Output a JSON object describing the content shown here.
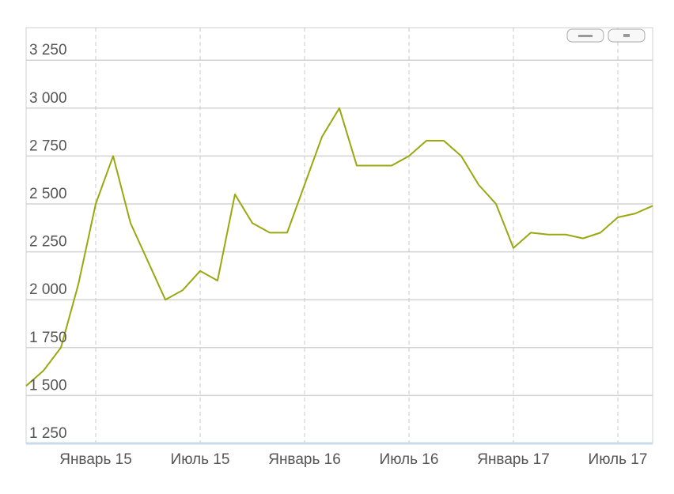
{
  "chart_data": {
    "type": "line",
    "x": [
      "2014-09",
      "2014-10",
      "2014-11",
      "2014-12",
      "2015-01",
      "2015-02",
      "2015-03",
      "2015-04",
      "2015-05",
      "2015-06",
      "2015-07",
      "2015-08",
      "2015-09",
      "2015-10",
      "2015-11",
      "2015-12",
      "2016-01",
      "2016-02",
      "2016-03",
      "2016-04",
      "2016-05",
      "2016-06",
      "2016-07",
      "2016-08",
      "2016-09",
      "2016-10",
      "2016-11",
      "2016-12",
      "2017-01",
      "2017-02",
      "2017-03",
      "2017-04",
      "2017-05",
      "2017-06",
      "2017-07",
      "2017-08",
      "2017-09"
    ],
    "series": [
      {
        "color": "#9aa80f",
        "values": [
          1550,
          1630,
          1750,
          2080,
          2500,
          2750,
          2400,
          2200,
          2000,
          2050,
          2150,
          2100,
          2550,
          2400,
          2350,
          2350,
          2600,
          2850,
          3000,
          2700,
          2700,
          2700,
          2750,
          2830,
          2830,
          2750,
          2600,
          2500,
          2270,
          2350,
          2340,
          2340,
          2320,
          2350,
          2430,
          2450,
          2490
        ]
      }
    ],
    "xlim": [
      "2014-09",
      "2017-09"
    ],
    "xticks": [
      {
        "value": "2015-01",
        "label": "Январь 15"
      },
      {
        "value": "2015-07",
        "label": "Июль 15"
      },
      {
        "value": "2016-01",
        "label": "Январь 16"
      },
      {
        "value": "2016-07",
        "label": "Июль 16"
      },
      {
        "value": "2017-01",
        "label": "Январь 17"
      },
      {
        "value": "2017-07",
        "label": "Июль 17"
      }
    ],
    "ylim": [
      1250,
      3420
    ],
    "yticks": [
      {
        "value": 1250,
        "label": "1 250"
      },
      {
        "value": 1500,
        "label": "1 500"
      },
      {
        "value": 1750,
        "label": "1 750"
      },
      {
        "value": 2000,
        "label": "2 000"
      },
      {
        "value": 2250,
        "label": "2 250"
      },
      {
        "value": 2500,
        "label": "2 500"
      },
      {
        "value": 2750,
        "label": "2 750"
      },
      {
        "value": 3000,
        "label": "3 000"
      },
      {
        "value": 3250,
        "label": "3 250"
      }
    ],
    "grid": true
  }
}
